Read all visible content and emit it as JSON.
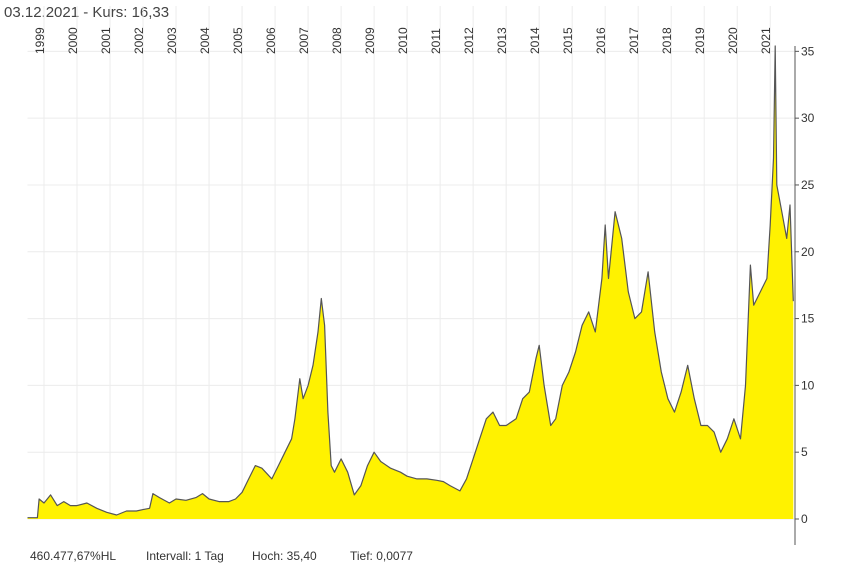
{
  "chart_data": {
    "type": "area",
    "title": "03.12.2021  -  Kurs: 16,33",
    "stats": [
      "460.477,67%HL",
      "Intervall: 1 Tag",
      "Hoch:  35,40",
      "Tief: 0,0077"
    ],
    "fill_color": "#fff200",
    "line_color": "#555555",
    "grid": true,
    "xlim": [
      1998.5,
      2021.75
    ],
    "xticks": [
      1999,
      2000,
      2001,
      2002,
      2003,
      2004,
      2005,
      2006,
      2007,
      2008,
      2009,
      2010,
      2011,
      2012,
      2013,
      2014,
      2015,
      2016,
      2017,
      2018,
      2019,
      2020,
      2021
    ],
    "ylim": [
      0,
      35.4
    ],
    "yticks": [
      0,
      5,
      10,
      15,
      20,
      25,
      30,
      35
    ],
    "x": [
      1998.5,
      1998.8,
      1998.85,
      1999.0,
      1999.2,
      1999.4,
      1999.6,
      1999.8,
      2000.0,
      2000.3,
      2000.6,
      2000.9,
      2001.2,
      2001.5,
      2001.8,
      2002.0,
      2002.2,
      2002.3,
      2002.5,
      2002.8,
      2003.0,
      2003.3,
      2003.6,
      2003.8,
      2004.0,
      2004.3,
      2004.6,
      2004.8,
      2005.0,
      2005.2,
      2005.4,
      2005.6,
      2005.9,
      2006.1,
      2006.3,
      2006.5,
      2006.6,
      2006.75,
      2006.85,
      2007.0,
      2007.15,
      2007.3,
      2007.4,
      2007.5,
      2007.6,
      2007.7,
      2007.8,
      2008.0,
      2008.2,
      2008.4,
      2008.6,
      2008.8,
      2009.0,
      2009.2,
      2009.5,
      2009.8,
      2010.0,
      2010.3,
      2010.6,
      2010.9,
      2011.1,
      2011.3,
      2011.6,
      2011.8,
      2012.0,
      2012.2,
      2012.4,
      2012.6,
      2012.8,
      2013.0,
      2013.3,
      2013.5,
      2013.7,
      2013.9,
      2014.0,
      2014.15,
      2014.35,
      2014.5,
      2014.7,
      2014.9,
      2015.1,
      2015.3,
      2015.5,
      2015.7,
      2015.9,
      2016.0,
      2016.1,
      2016.3,
      2016.5,
      2016.7,
      2016.9,
      2017.1,
      2017.3,
      2017.5,
      2017.7,
      2017.9,
      2018.1,
      2018.3,
      2018.5,
      2018.7,
      2018.9,
      2019.1,
      2019.3,
      2019.5,
      2019.7,
      2019.9,
      2020.1,
      2020.25,
      2020.4,
      2020.5,
      2020.7,
      2020.9,
      2021.0,
      2021.1,
      2021.15,
      2021.2,
      2021.35,
      2021.5,
      2021.6,
      2021.7
    ],
    "values": [
      0.1,
      0.1,
      1.5,
      1.2,
      1.8,
      1.0,
      1.3,
      1.0,
      1.0,
      1.2,
      0.8,
      0.5,
      0.3,
      0.6,
      0.6,
      0.7,
      0.8,
      1.9,
      1.6,
      1.2,
      1.5,
      1.4,
      1.6,
      1.9,
      1.5,
      1.3,
      1.3,
      1.5,
      2.0,
      3.0,
      4.0,
      3.8,
      3.0,
      4.0,
      5.0,
      6.0,
      7.5,
      10.5,
      9.0,
      10.0,
      11.5,
      14.0,
      16.5,
      14.5,
      8.0,
      4.0,
      3.5,
      4.5,
      3.5,
      1.8,
      2.5,
      4.0,
      5.0,
      4.3,
      3.8,
      3.5,
      3.2,
      3.0,
      3.0,
      2.9,
      2.8,
      2.5,
      2.1,
      3.0,
      4.5,
      6.0,
      7.5,
      8.0,
      7.0,
      7.0,
      7.5,
      9.0,
      9.5,
      12.0,
      13.0,
      10.0,
      7.0,
      7.5,
      10.0,
      11.0,
      12.5,
      14.5,
      15.5,
      14.0,
      18.0,
      22.0,
      18.0,
      23.0,
      21.0,
      17.0,
      15.0,
      15.5,
      18.5,
      14.0,
      11.0,
      9.0,
      8.0,
      9.5,
      11.5,
      9.0,
      7.0,
      7.0,
      6.5,
      5.0,
      6.0,
      7.5,
      6.0,
      10.0,
      19.0,
      16.0,
      17.0,
      18.0,
      22.0,
      27.0,
      35.4,
      25.0,
      23.0,
      21.0,
      23.5,
      16.3
    ]
  }
}
